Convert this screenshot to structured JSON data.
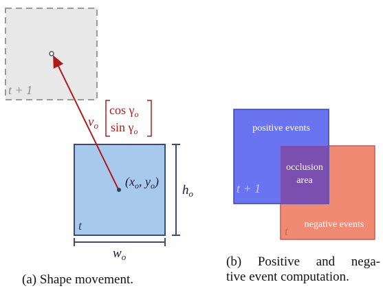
{
  "panel_a": {
    "label_prev_time": "t + 1",
    "label_velocity": "v",
    "label_velocity_sub": "o",
    "matrix_top": "cos γ",
    "matrix_top_sub": "o",
    "matrix_bottom": "sin γ",
    "matrix_bottom_sub": "o",
    "label_center": "(x",
    "label_center_sub1": "o",
    "label_center_mid": ", y",
    "label_center_sub2": "o",
    "label_center_end": ")",
    "label_height": "h",
    "label_height_sub": "o",
    "label_width": "w",
    "label_width_sub": "o",
    "label_time": "t",
    "caption": "(a) Shape movement."
  },
  "panel_b": {
    "label_positive": "positive events",
    "label_occlusion_line1": "occlusion",
    "label_occlusion_line2": "area",
    "label_next_time": "t + 1",
    "label_negative": "negative events",
    "label_time": "t",
    "caption_line1": "(b) Positive and nega-",
    "caption_line2": "tive event computation."
  },
  "colors": {
    "gray_fill": "#e8e8e8",
    "gray_stroke": "#9a9a9a",
    "blue_fill": "#a7c9ec",
    "blue_stroke": "#3b4a7a",
    "arrow": "#b01a1a",
    "pos_fill": "#6a73f0",
    "neg_fill": "#f08a72",
    "occ_fill": "#7a4fb0"
  }
}
